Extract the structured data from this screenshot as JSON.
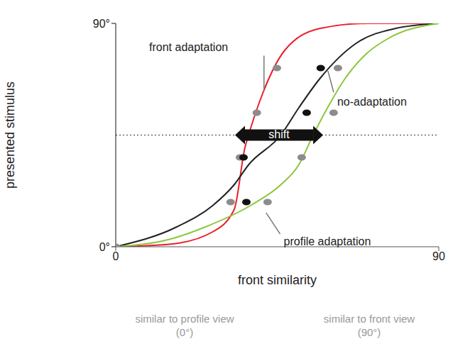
{
  "chart_data": {
    "type": "line",
    "x_label": "front similarity",
    "y_label": "presented stimulus",
    "xlim": [
      0,
      90
    ],
    "xticks": [
      0,
      90
    ],
    "ylim": [
      0,
      90
    ],
    "yticks": [
      {
        "value": 0,
        "label": "0°"
      },
      {
        "value": 90,
        "label": "90°"
      }
    ],
    "grid": false,
    "series": [
      {
        "name": "front adaptation",
        "color": "#e8202a",
        "line_style": "smooth",
        "x": [
          0,
          15,
          27,
          33,
          36,
          37,
          41,
          47,
          57,
          70,
          90
        ],
        "values": [
          0,
          1,
          6,
          15,
          40,
          45,
          62,
          79,
          88,
          90,
          90
        ],
        "label_at": [
          9.3,
          80
        ],
        "leader": [
          [
            41.3,
            77
          ],
          [
            41.3,
            63
          ]
        ]
      },
      {
        "name": "no-adaptation",
        "color": "#222222",
        "line_style": "smooth",
        "x": [
          0,
          17,
          27,
          33,
          37,
          46,
          51,
          57,
          67,
          78,
          90
        ],
        "values": [
          0,
          8,
          16.6,
          25,
          33,
          45,
          56,
          68,
          82,
          88,
          90
        ],
        "label_at": [
          61.7,
          58
        ],
        "leader": [
          [
            59.1,
            70.9
          ],
          [
            60.7,
            62.3
          ]
        ]
      },
      {
        "name": "profile adaptation",
        "color": "#8cc63f",
        "line_style": "smooth",
        "x": [
          0,
          15,
          25,
          38,
          46,
          51,
          55,
          59,
          64,
          70,
          76,
          90
        ],
        "values": [
          0,
          3,
          8,
          17,
          25,
          33,
          45,
          56,
          68,
          78,
          84,
          90
        ],
        "label_at": [
          46.8,
          1.7
        ],
        "leader": [
          [
            41.9,
            13.7
          ],
          [
            45.8,
            5.1
          ]
        ]
      }
    ],
    "points": [
      {
        "type": "scatter",
        "marker": "circle",
        "color": "#8c8c8c",
        "x": [
          0,
          32,
          34.6,
          39.3,
          44.9
        ],
        "values": [
          0,
          18,
          36,
          54,
          72
        ]
      },
      {
        "type": "scatter",
        "marker": "circle",
        "color": "#8c8c8c",
        "x": [
          42.3,
          51.8,
          60.7,
          61.9
        ],
        "values": [
          18,
          36,
          54,
          72
        ]
      },
      {
        "type": "scatter",
        "marker": "circle",
        "color": "#111111",
        "x": [
          36.4,
          35.6,
          53.2,
          57.1
        ],
        "values": [
          18,
          36,
          54,
          72
        ]
      }
    ],
    "reference_line": {
      "y": 45,
      "line_style": "dotted"
    },
    "shift": {
      "text": "shift",
      "from": 36,
      "to": 55,
      "y": 45
    },
    "x_end_labels": [
      [
        "similar to profile view",
        "(0°)"
      ],
      [
        "similar to front view",
        "(90°)"
      ]
    ]
  }
}
